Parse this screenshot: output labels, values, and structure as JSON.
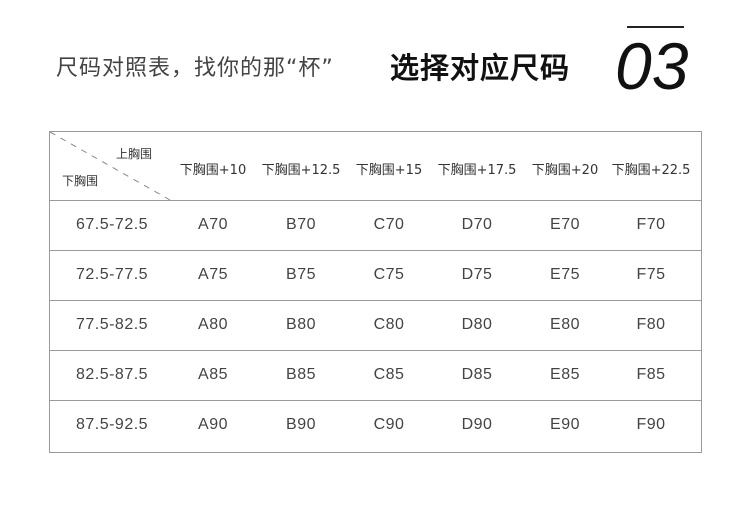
{
  "header": {
    "subtitle": "尺码对照表，找你的那“杯”",
    "title": "选择对应尺码",
    "number": "03"
  },
  "table": {
    "corner_top": "上胸围",
    "corner_bottom": "下胸围",
    "columns": [
      "下胸围+10",
      "下胸围+12.5",
      "下胸围+15",
      "下胸围+17.5",
      "下胸围+20",
      "下胸围+22.5"
    ],
    "rows": [
      {
        "range": "67.5-72.5",
        "sizes": [
          "A70",
          "B70",
          "C70",
          "D70",
          "E70",
          "F70"
        ]
      },
      {
        "range": "72.5-77.5",
        "sizes": [
          "A75",
          "B75",
          "C75",
          "D75",
          "E75",
          "F75"
        ]
      },
      {
        "range": "77.5-82.5",
        "sizes": [
          "A80",
          "B80",
          "C80",
          "D80",
          "E80",
          "F80"
        ]
      },
      {
        "range": "82.5-87.5",
        "sizes": [
          "A85",
          "B85",
          "C85",
          "D85",
          "E85",
          "F85"
        ]
      },
      {
        "range": "87.5-92.5",
        "sizes": [
          "A90",
          "B90",
          "C90",
          "D90",
          "E90",
          "F90"
        ]
      }
    ]
  }
}
